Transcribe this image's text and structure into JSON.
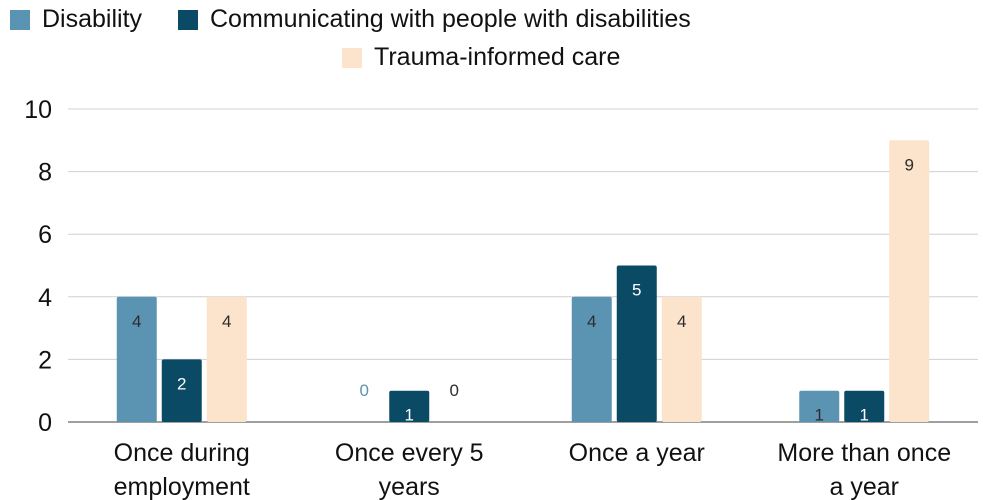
{
  "chart_data": {
    "type": "bar",
    "categories": [
      [
        "Once during",
        "employment"
      ],
      [
        "Once every 5",
        "years"
      ],
      [
        "Once a year"
      ],
      [
        "More than once",
        "a year"
      ]
    ],
    "series": [
      {
        "name": "Disability",
        "color": "#5b93b3",
        "values": [
          4,
          0,
          4,
          1
        ]
      },
      {
        "name": "Communicating with people with disabilities",
        "color": "#0b4a64",
        "values": [
          2,
          1,
          5,
          1
        ]
      },
      {
        "name": "Trauma-informed care",
        "color": "#fbe3cc",
        "values": [
          4,
          0,
          4,
          9
        ]
      }
    ],
    "label_colors": [
      "#2d2d2d",
      "#ffffff",
      "#2d2d2d"
    ],
    "zero_label_colors": [
      "#5b93b3",
      "#0b4a64",
      "#2d2d2d"
    ],
    "yticks": [
      "0",
      "2",
      "4",
      "6",
      "8",
      "10"
    ],
    "ylim": [
      0,
      10
    ],
    "grid": true,
    "legend_position": "top"
  }
}
